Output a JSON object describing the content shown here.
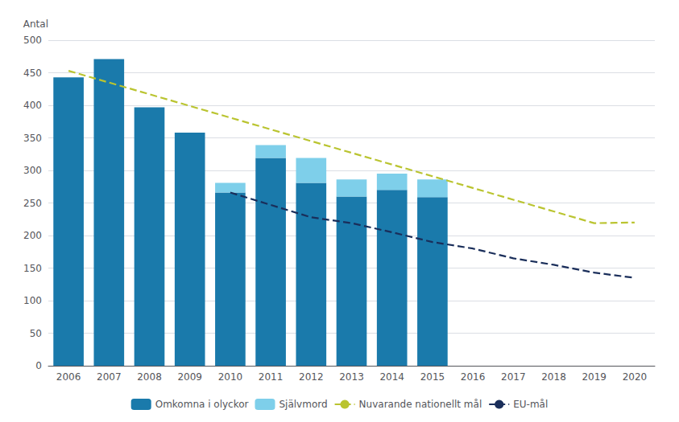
{
  "chart_data": {
    "type": "bar",
    "ylabel": "Antal",
    "categories": [
      "2006",
      "2007",
      "2008",
      "2009",
      "2010",
      "2011",
      "2012",
      "2013",
      "2014",
      "2015",
      "2016",
      "2017",
      "2018",
      "2019",
      "2020"
    ],
    "series": [
      {
        "name": "Omkomna i olyckor",
        "type": "bar",
        "color": "#1a7aab",
        "values": [
          443,
          471,
          397,
          358,
          266,
          319,
          281,
          260,
          270,
          259,
          null,
          null,
          null,
          null,
          null
        ]
      },
      {
        "name": "Självmord",
        "type": "bar",
        "color": "#7ecfea",
        "values": [
          0,
          0,
          0,
          0,
          15,
          20,
          38,
          26,
          25,
          27,
          null,
          null,
          null,
          null,
          null
        ]
      },
      {
        "name": "Nuvarande nationellt mål",
        "type": "line",
        "line_style": "dashed",
        "color": "#bac430",
        "values": [
          453,
          435,
          417,
          399,
          381,
          363,
          345,
          327,
          309,
          291,
          273,
          255,
          237,
          219,
          220
        ]
      },
      {
        "name": "EU-mål",
        "type": "line",
        "line_style": "dashed",
        "color": "#1a2e5a",
        "values": [
          null,
          null,
          null,
          null,
          266,
          247,
          228,
          219,
          205,
          190,
          180,
          165,
          155,
          143,
          135
        ]
      }
    ],
    "stacked": true,
    "ylim": [
      0,
      500
    ],
    "yticks": [
      0,
      50,
      100,
      150,
      200,
      250,
      300,
      350,
      400,
      450,
      500
    ],
    "grid": true,
    "legend": "bottom"
  }
}
